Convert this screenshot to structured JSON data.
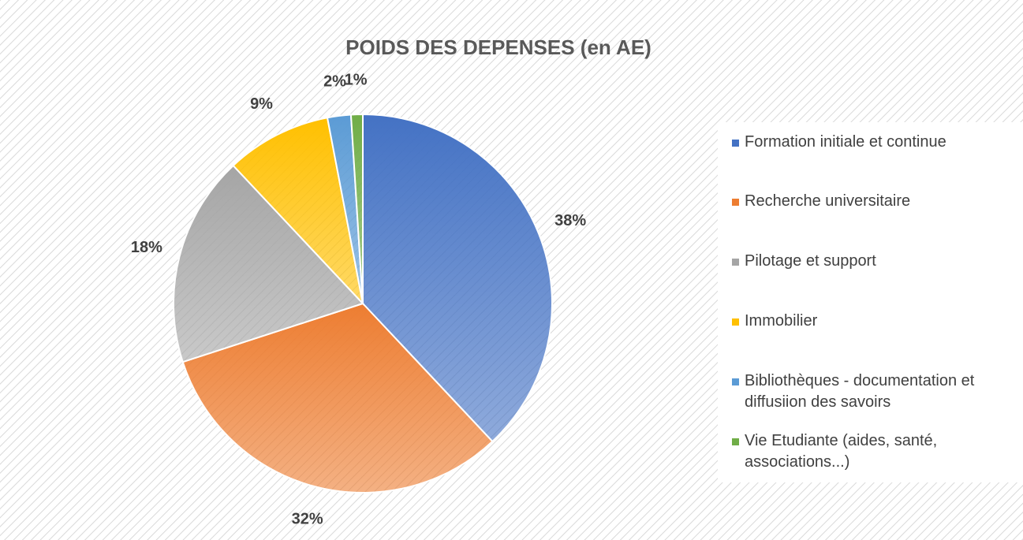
{
  "chart_data": {
    "type": "pie",
    "title": "POIDS DES DEPENSES (en AE)",
    "categories": [
      "Formation initiale et continue",
      "Recherche universitaire",
      "Pilotage et support",
      "Immobilier",
      "Bibliothèques - documentation et diffusiion des savoirs",
      "Vie Etudiante (aides, santé, associations...)"
    ],
    "values": [
      38,
      32,
      18,
      9,
      2,
      1
    ],
    "value_labels": [
      "38%",
      "32%",
      "18%",
      "9%",
      "2%",
      "1%"
    ],
    "colors": [
      "#4472c4",
      "#ed7d31",
      "#a5a5a5",
      "#ffc000",
      "#5b9bd5",
      "#70ad47"
    ],
    "legend": "right"
  }
}
